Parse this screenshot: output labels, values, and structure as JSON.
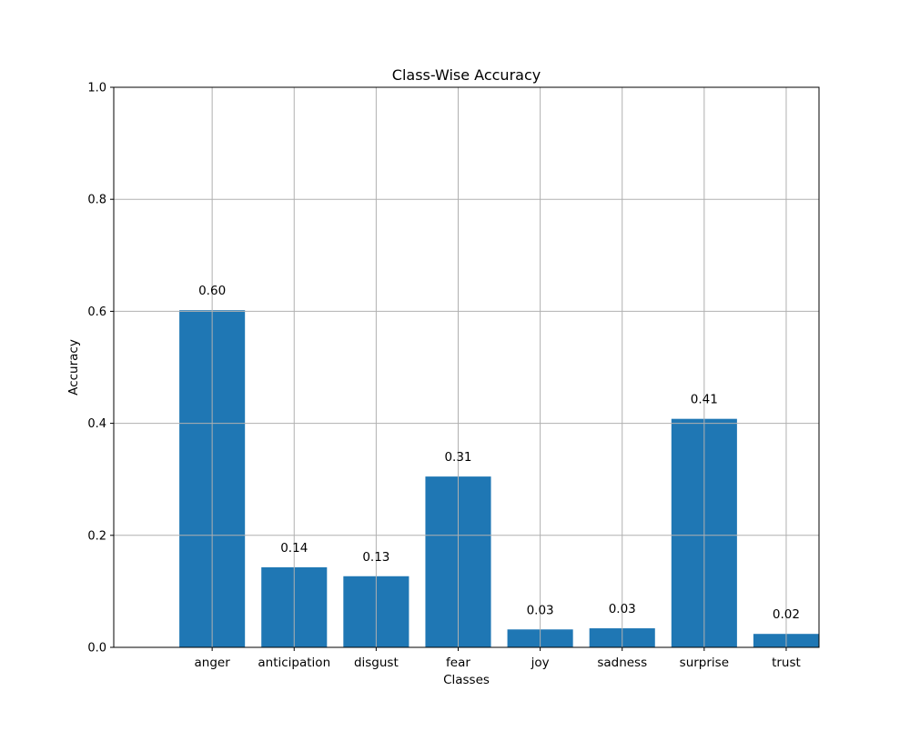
{
  "chart_data": {
    "type": "bar",
    "title": "Class-Wise Accuracy",
    "xlabel": "Classes",
    "ylabel": "Accuracy",
    "categories": [
      "anger",
      "anticipation",
      "disgust",
      "fear",
      "joy",
      "sadness",
      "surprise",
      "trust"
    ],
    "values": [
      0.602,
      0.143,
      0.127,
      0.305,
      0.032,
      0.034,
      0.408,
      0.024
    ],
    "value_labels": [
      "0.60",
      "0.14",
      "0.13",
      "0.31",
      "0.03",
      "0.03",
      "0.41",
      "0.02"
    ],
    "ylim": [
      0,
      1.0
    ],
    "yticks": [
      "0.0",
      "0.2",
      "0.4",
      "0.6",
      "0.8",
      "1.0"
    ],
    "grid": true,
    "bar_color": "#1f77b4",
    "grid_color": "#b0b0b0"
  }
}
